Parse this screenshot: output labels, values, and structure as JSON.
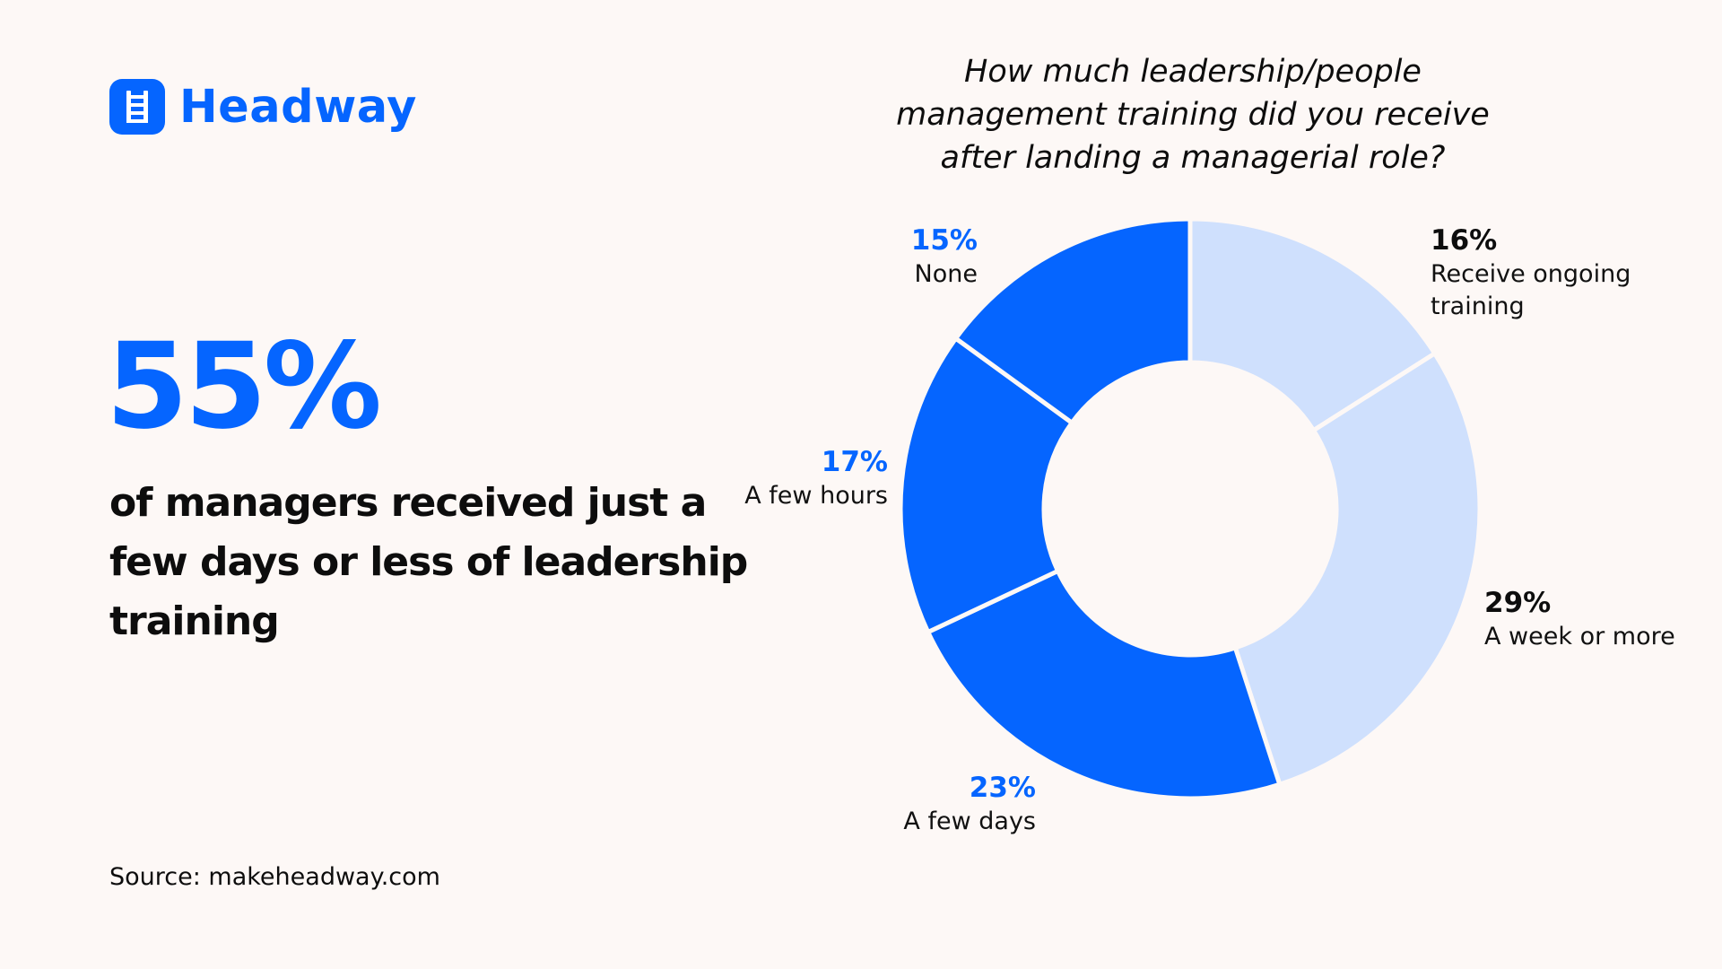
{
  "brand": {
    "name": "Headway",
    "logo_icon": "ladder-icon",
    "color": "#0565ff"
  },
  "headline": {
    "stat": "55%",
    "description": "of managers received just a few days or less of leadership training"
  },
  "source": "Source: makeheadway.com",
  "colors": {
    "primary": "#0565ff",
    "light": "#cfe0fd",
    "background": "#fdf8f6",
    "text": "#0d0d0d"
  },
  "chart_data": {
    "type": "pie",
    "title": "How much leadership/people management training did you receive after landing a managerial role?",
    "variant": "donut",
    "categories": [
      "Receive ongoing training",
      "A week or more",
      "A few days",
      "A few hours",
      "None"
    ],
    "values": [
      16,
      29,
      23,
      17,
      15
    ],
    "labels": [
      "16%",
      "29%",
      "23%",
      "17%",
      "15%"
    ],
    "slice_colors": [
      "#cfe0fd",
      "#cfe0fd",
      "#0565ff",
      "#0565ff",
      "#0565ff"
    ],
    "label_colors": [
      "#0d0d0d",
      "#0d0d0d",
      "#0565ff",
      "#0565ff",
      "#0565ff"
    ]
  }
}
